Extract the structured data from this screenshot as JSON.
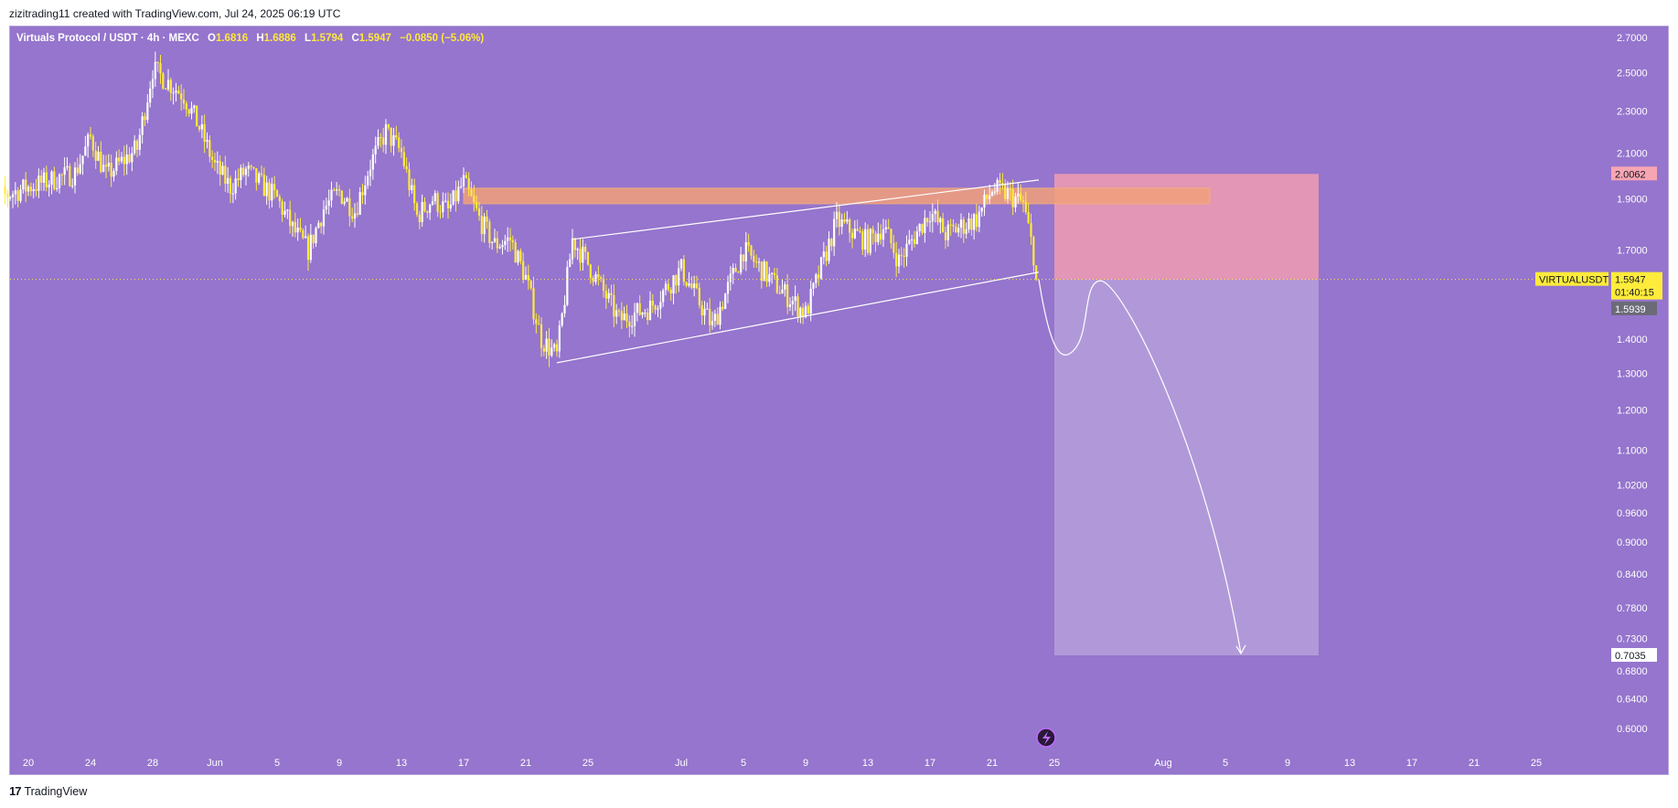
{
  "header": {
    "credit": "zizitrading11 created with TradingView.com, Jul 24, 2025 06:19 UTC"
  },
  "legend": {
    "symbol": "Virtuals Protocol / USDT · 4h · MEXC",
    "open_label": "O",
    "open": "1.6816",
    "high_label": "H",
    "high": "1.6886",
    "low_label": "L",
    "low": "1.5794",
    "close_label": "C",
    "close": "1.5947",
    "change": "−0.0850 (−5.06%)"
  },
  "footer": {
    "logo_glyph": "17",
    "brand": "TradingView"
  },
  "colors": {
    "background": "#9575cd",
    "candle": "#ffeb3b",
    "candle_alt": "#ffffff",
    "stop_zone": "#f19cb0",
    "target_zone": "#b8a3dc",
    "resistance_zone": "#f2a07b"
  },
  "chart_data": {
    "type": "candlestick",
    "scale": "log",
    "yticks": [
      "2.7000",
      "2.5000",
      "2.3000",
      "2.1000",
      "1.9000",
      "1.7000",
      "1.4000",
      "1.3000",
      "1.2000",
      "1.1000",
      "1.0200",
      "0.9600",
      "0.9000",
      "0.8400",
      "0.7800",
      "0.7300",
      "0.6800",
      "0.6400",
      "0.6000"
    ],
    "xticks": [
      "20",
      "24",
      "28",
      "Jun",
      "5",
      "9",
      "13",
      "17",
      "21",
      "25",
      "Jul",
      "5",
      "9",
      "13",
      "17",
      "21",
      "25",
      "Aug",
      "5",
      "9",
      "13",
      "17",
      "21",
      "25"
    ],
    "price_path": [
      [
        "2025-05-17",
        1.88
      ],
      [
        "2025-05-20",
        1.95
      ],
      [
        "2025-05-23",
        2.01
      ],
      [
        "2025-05-24",
        2.17
      ],
      [
        "2025-05-25",
        2.0
      ],
      [
        "2025-05-27",
        2.12
      ],
      [
        "2025-05-28",
        2.52
      ],
      [
        "2025-05-30",
        2.38
      ],
      [
        "2025-05-31",
        2.22
      ],
      [
        "2025-06-01",
        2.04
      ],
      [
        "2025-06-02",
        1.95
      ],
      [
        "2025-06-03",
        2.02
      ],
      [
        "2025-06-05",
        1.9
      ],
      [
        "2025-06-06",
        1.78
      ],
      [
        "2025-06-07",
        1.7
      ],
      [
        "2025-06-08",
        1.86
      ],
      [
        "2025-06-09",
        1.93
      ],
      [
        "2025-06-10",
        1.85
      ],
      [
        "2025-06-11",
        2.05
      ],
      [
        "2025-06-12",
        2.2
      ],
      [
        "2025-06-13",
        2.1
      ],
      [
        "2025-06-14",
        1.83
      ],
      [
        "2025-06-15",
        1.9
      ],
      [
        "2025-06-16",
        1.85
      ],
      [
        "2025-06-17",
        1.97
      ],
      [
        "2025-06-18",
        1.82
      ],
      [
        "2025-06-19",
        1.72
      ],
      [
        "2025-06-20",
        1.74
      ],
      [
        "2025-06-21",
        1.6
      ],
      [
        "2025-06-22",
        1.4
      ],
      [
        "2025-06-23",
        1.35
      ],
      [
        "2025-06-24",
        1.74
      ],
      [
        "2025-06-25",
        1.65
      ],
      [
        "2025-06-27",
        1.46
      ],
      [
        "2025-06-29",
        1.5
      ],
      [
        "2025-07-01",
        1.63
      ],
      [
        "2025-07-03",
        1.44
      ],
      [
        "2025-07-05",
        1.7
      ],
      [
        "2025-07-07",
        1.58
      ],
      [
        "2025-07-09",
        1.48
      ],
      [
        "2025-07-11",
        1.81
      ],
      [
        "2025-07-13",
        1.73
      ],
      [
        "2025-07-14",
        1.79
      ],
      [
        "2025-07-15",
        1.66
      ],
      [
        "2025-07-17",
        1.85
      ],
      [
        "2025-07-18",
        1.76
      ],
      [
        "2025-07-20",
        1.82
      ],
      [
        "2025-07-21",
        1.94
      ],
      [
        "2025-07-22",
        1.92
      ],
      [
        "2025-07-23",
        1.88
      ],
      [
        "2025-07-24",
        1.5947
      ]
    ],
    "drawings": {
      "rising_wedge": {
        "upper": [
          [
            "2025-06-24",
            1.74
          ],
          [
            "2025-07-24",
            1.98
          ]
        ],
        "lower": [
          [
            "2025-06-23",
            1.33
          ],
          [
            "2025-07-24",
            1.62
          ]
        ]
      },
      "resistance_zone": {
        "from": "2025-06-17",
        "to": "2025-08-04",
        "top": 1.945,
        "bottom": 1.88
      },
      "short_position": {
        "from": "2025-07-25",
        "to": "2025-08-11",
        "entry": 1.5939,
        "stop": 2.0062,
        "target": 0.7035
      },
      "projected_path": [
        [
          "2025-07-24",
          1.5947
        ],
        [
          "2025-07-26",
          1.4
        ],
        [
          "2025-07-28",
          1.59
        ],
        [
          "2025-07-30",
          1.42
        ],
        [
          "2025-08-06",
          0.7035
        ]
      ]
    },
    "price_labels": {
      "symbol_tag": "VIRTUALUSDT",
      "last_price": "1.5947",
      "countdown": "01:40:15",
      "entry": "1.5939",
      "stop": "2.0062",
      "target": "0.7035"
    }
  }
}
